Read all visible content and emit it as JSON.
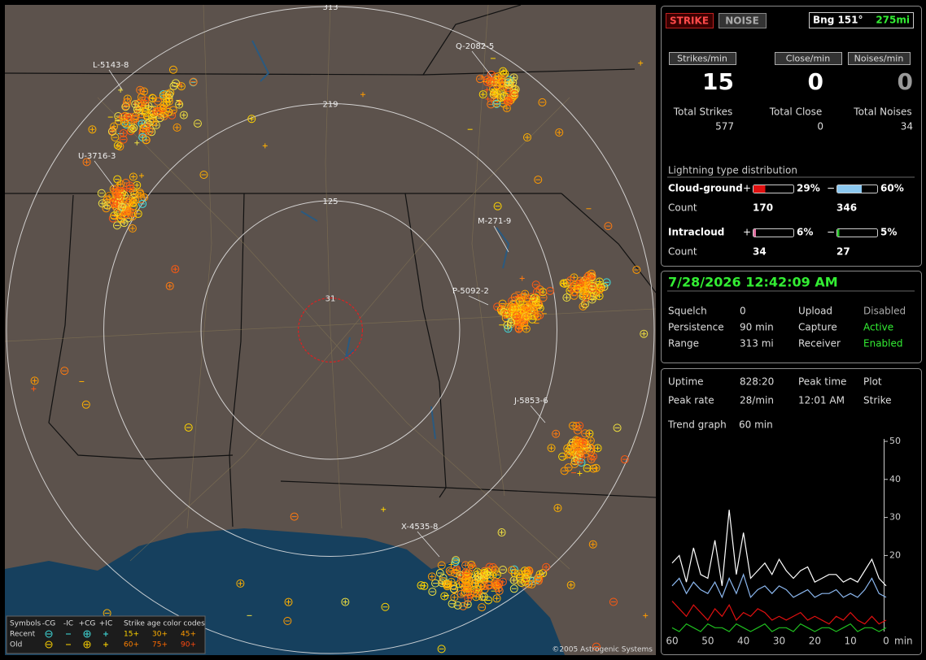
{
  "map": {
    "range_rings": [
      313,
      219,
      125,
      31
    ],
    "cluster_labels": [
      "L-5143-8",
      "Q-2082-5",
      "U-3716-3",
      "M-271-9",
      "P-5092-2",
      "J-5853-6",
      "X-4535-8"
    ],
    "legend": {
      "symbols_title": "Symbols",
      "columns": [
        "-CG",
        "-IC",
        "+CG",
        "+IC"
      ],
      "age_title": "Strike age color codes",
      "rows": [
        {
          "label": "Recent",
          "ages": [
            "15+",
            "30+",
            "45+"
          ]
        },
        {
          "label": "Old",
          "ages": [
            "60+",
            "75+",
            "90+"
          ]
        }
      ]
    },
    "copyright": "©2005 Astrogenic Systems"
  },
  "status": {
    "buttons": [
      "STRIKE",
      "NOISE"
    ],
    "bearing": "Bng 151°",
    "distance": "275mi"
  },
  "rates": [
    {
      "label": "Strikes/min",
      "value": 15,
      "total_label": "Total Strikes",
      "total": 577
    },
    {
      "label": "Close/min",
      "value": 0,
      "total_label": "Total Close",
      "total": 0
    },
    {
      "label": "Noises/min",
      "value": 0,
      "total_label": "Total Noises",
      "total": 34
    }
  ],
  "distribution": {
    "title": "Lightning type distribution",
    "count_label": "Count",
    "signs": [
      "+",
      "−"
    ],
    "rows": [
      {
        "label": "Cloud-ground",
        "positive": {
          "value": 29,
          "label": "29%"
        },
        "negative": {
          "value": 60,
          "label": "60%"
        },
        "positive_count": 170,
        "negative_count": 346
      },
      {
        "label": "Intracloud",
        "positive": {
          "value": 6,
          "label": "6%"
        },
        "negative": {
          "value": 5,
          "label": "5%"
        },
        "positive_count": 34,
        "negative_count": 27
      }
    ]
  },
  "session": {
    "datetime": "7/28/2026 12:42:09 AM",
    "rows": [
      [
        "Squelch",
        "0",
        "Upload",
        "Disabled"
      ],
      [
        "Persistence",
        "90 min",
        "Capture",
        "Active"
      ],
      [
        "Range",
        "313 mi",
        "Receiver",
        "Enabled"
      ]
    ]
  },
  "stats": {
    "rows": [
      [
        "Uptime",
        "828:20",
        "Peak time",
        "Plot"
      ],
      [
        "Peak rate",
        "28/min",
        "12:01 AM",
        "Strike"
      ]
    ],
    "trend_label": "Trend graph",
    "trend_value": "60 min"
  },
  "chart_data": {
    "type": "line",
    "x": [
      60,
      58,
      56,
      54,
      52,
      50,
      48,
      46,
      44,
      42,
      40,
      38,
      36,
      34,
      32,
      30,
      28,
      26,
      24,
      22,
      20,
      18,
      16,
      14,
      12,
      10,
      8,
      6,
      4,
      2,
      0
    ],
    "series": [
      {
        "color": "#ffffff",
        "values": [
          18,
          20,
          13,
          22,
          15,
          14,
          24,
          12,
          32,
          15,
          26,
          14,
          16,
          18,
          15,
          19,
          16,
          14,
          16,
          17,
          13,
          14,
          15,
          15,
          13,
          14,
          13,
          16,
          19,
          14,
          12
        ]
      },
      {
        "color": "#8cb8f0",
        "values": [
          12,
          14,
          10,
          13,
          11,
          10,
          13,
          9,
          14,
          10,
          15,
          9,
          11,
          12,
          10,
          12,
          11,
          9,
          10,
          11,
          9,
          10,
          10,
          11,
          9,
          10,
          9,
          11,
          14,
          10,
          9
        ]
      },
      {
        "color": "#e01010",
        "values": [
          8,
          6,
          4,
          7,
          5,
          3,
          6,
          4,
          7,
          3,
          5,
          4,
          6,
          5,
          3,
          4,
          3,
          4,
          5,
          3,
          4,
          3,
          2,
          4,
          3,
          5,
          3,
          2,
          4,
          2,
          3
        ]
      },
      {
        "color": "#20c020",
        "values": [
          1,
          0,
          2,
          1,
          0,
          2,
          1,
          1,
          0,
          2,
          1,
          0,
          1,
          2,
          0,
          1,
          1,
          0,
          2,
          1,
          0,
          1,
          1,
          0,
          1,
          2,
          0,
          1,
          1,
          0,
          1
        ]
      }
    ],
    "xlim": [
      60,
      0
    ],
    "xticks": [
      60,
      50,
      40,
      30,
      20,
      10,
      0
    ],
    "x_unit": "min",
    "ylim": [
      0,
      50
    ],
    "yticks": [
      20,
      30,
      40,
      50
    ]
  }
}
